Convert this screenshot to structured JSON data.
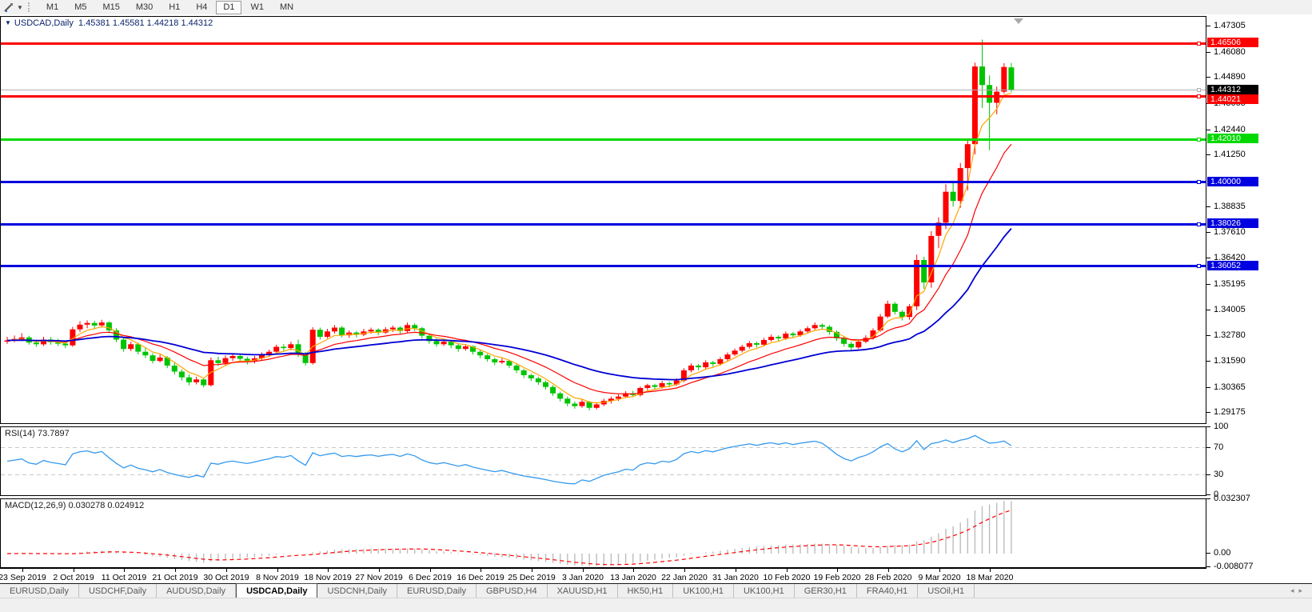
{
  "toolbar": {
    "tool_icon": "annotation-cursor-tool",
    "timeframes": [
      "M1",
      "M5",
      "M15",
      "M30",
      "H1",
      "H4",
      "D1",
      "W1",
      "MN"
    ],
    "active_timeframe": "D1"
  },
  "chart": {
    "symbol_title": "USDCAD,Daily",
    "ohlc_label": "1.45381 1.45581 1.44218 1.44312",
    "rsi_label": "RSI(14) 73.7897",
    "macd_label": "MACD(12,26,9) 0.030278 0.024912",
    "current_price": "1.44312",
    "price_ticks": [
      "1.47305",
      "1.46080",
      "1.44890",
      "1.43665",
      "1.42440",
      "1.41250",
      "1.38835",
      "1.37610",
      "1.36420",
      "1.35195",
      "1.34005",
      "1.32780",
      "1.31590",
      "1.30365",
      "1.29175"
    ],
    "rsi_ticks": [
      "100",
      "70",
      "30",
      "0"
    ],
    "macd_ticks": [
      "0.032307",
      "0.00",
      "-0.008077"
    ],
    "levels": [
      {
        "value": 1.46506,
        "label": "1.46506",
        "color": "#fe0000"
      },
      {
        "value": 1.44021,
        "label": "1.44021",
        "color": "#fe0000"
      },
      {
        "value": 1.4201,
        "label": "1.42010",
        "color": "#00d900"
      },
      {
        "value": 1.4,
        "label": "1.40000",
        "color": "#0000e0"
      },
      {
        "value": 1.38026,
        "label": "1.38026",
        "color": "#0000e0"
      },
      {
        "value": 1.36052,
        "label": "1.36052",
        "color": "#0000e0"
      }
    ],
    "date_labels": [
      "23 Sep 2019",
      "2 Oct 2019",
      "11 Oct 2019",
      "21 Oct 2019",
      "30 Oct 2019",
      "8 Nov 2019",
      "18 Nov 2019",
      "27 Nov 2019",
      "6 Dec 2019",
      "16 Dec 2019",
      "25 Dec 2019",
      "3 Jan 2020",
      "13 Jan 2020",
      "22 Jan 2020",
      "31 Jan 2020",
      "10 Feb 2020",
      "19 Feb 2020",
      "28 Feb 2020",
      "9 Mar 2020",
      "18 Mar 2020"
    ],
    "colors": {
      "bull_candle": "#fe0000",
      "bear_candle": "#00c400",
      "ma_fast": "#ffa500",
      "ma_mid": "#fe0000",
      "ma_slow": "#0000d4",
      "rsi_line": "#3399ee",
      "macd_bar": "#bdbdbd",
      "macd_signal": "#fe0000",
      "current_price_line": "#b0b0b0",
      "current_price_badge": "#000000",
      "level_dash": "#c8c8c8"
    }
  },
  "tabs": {
    "items": [
      "EURUSD,Daily",
      "USDCHF,Daily",
      "AUDUSD,Daily",
      "USDCAD,Daily",
      "USDCNH,Daily",
      "EURUSD,Daily",
      "GBPUSD,H4",
      "XAUUSD,H1",
      "HK50,H1",
      "UK100,H1",
      "UK100,H1",
      "GER30,H1",
      "FRA40,H1",
      "USOil,H1"
    ],
    "active_index": 3
  },
  "chart_data": {
    "type": "candlestick",
    "symbol": "USDCAD",
    "timeframe": "Daily",
    "ylim": [
      1.287,
      1.4775
    ],
    "rsi_ylim": [
      0,
      100
    ],
    "indicators": {
      "rsi_period": 14,
      "macd": [
        12,
        26,
        9
      ],
      "ma_periods": {
        "fast": 5,
        "mid": 13,
        "slow": 34
      }
    },
    "last_ohlc": {
      "open": 1.45381,
      "high": 1.45581,
      "low": 1.44218,
      "close": 1.44312
    },
    "candles": [
      [
        1.3252,
        1.3275,
        1.3242,
        1.3258
      ],
      [
        1.3258,
        1.3281,
        1.325,
        1.3265
      ],
      [
        1.3265,
        1.3292,
        1.3258,
        1.3272
      ],
      [
        1.3272,
        1.328,
        1.3238,
        1.3248
      ],
      [
        1.3248,
        1.3262,
        1.3228,
        1.324
      ],
      [
        1.324,
        1.3275,
        1.3232,
        1.3262
      ],
      [
        1.3262,
        1.3274,
        1.3238,
        1.325
      ],
      [
        1.325,
        1.3266,
        1.3232,
        1.3243
      ],
      [
        1.3243,
        1.3258,
        1.3222,
        1.3235
      ],
      [
        1.3235,
        1.3322,
        1.3228,
        1.331
      ],
      [
        1.331,
        1.3348,
        1.3298,
        1.3332
      ],
      [
        1.3332,
        1.3352,
        1.3315,
        1.334
      ],
      [
        1.334,
        1.335,
        1.331,
        1.3328
      ],
      [
        1.3328,
        1.3355,
        1.3318,
        1.3342
      ],
      [
        1.3342,
        1.3348,
        1.3292,
        1.3305
      ],
      [
        1.3305,
        1.3315,
        1.325,
        1.3262
      ],
      [
        1.3262,
        1.327,
        1.3205,
        1.3218
      ],
      [
        1.3218,
        1.3252,
        1.3208,
        1.324
      ],
      [
        1.324,
        1.3248,
        1.3192,
        1.3205
      ],
      [
        1.3205,
        1.3222,
        1.3175,
        1.3188
      ],
      [
        1.3188,
        1.3198,
        1.315,
        1.3162
      ],
      [
        1.3162,
        1.3192,
        1.3155,
        1.3178
      ],
      [
        1.3178,
        1.3185,
        1.3128,
        1.314
      ],
      [
        1.314,
        1.3152,
        1.3098,
        1.3112
      ],
      [
        1.3112,
        1.3122,
        1.307,
        1.3085
      ],
      [
        1.3085,
        1.3098,
        1.3048,
        1.3062
      ],
      [
        1.3062,
        1.3088,
        1.3052,
        1.3075
      ],
      [
        1.3075,
        1.3082,
        1.3038,
        1.3048
      ],
      [
        1.3048,
        1.3178,
        1.3042,
        1.3165
      ],
      [
        1.3165,
        1.3182,
        1.3138,
        1.3152
      ],
      [
        1.3152,
        1.3188,
        1.314,
        1.3175
      ],
      [
        1.3175,
        1.3198,
        1.3162,
        1.3185
      ],
      [
        1.3185,
        1.3195,
        1.3158,
        1.3172
      ],
      [
        1.3172,
        1.3182,
        1.3145,
        1.316
      ],
      [
        1.316,
        1.3185,
        1.315,
        1.3174
      ],
      [
        1.3174,
        1.3202,
        1.3165,
        1.3192
      ],
      [
        1.3192,
        1.3215,
        1.318,
        1.3205
      ],
      [
        1.3205,
        1.3238,
        1.3195,
        1.3228
      ],
      [
        1.3228,
        1.324,
        1.3205,
        1.3222
      ],
      [
        1.3222,
        1.3252,
        1.3212,
        1.324
      ],
      [
        1.324,
        1.3262,
        1.318,
        1.3195
      ],
      [
        1.3195,
        1.3205,
        1.314,
        1.3152
      ],
      [
        1.3152,
        1.332,
        1.3145,
        1.3308
      ],
      [
        1.3308,
        1.3318,
        1.3262,
        1.3275
      ],
      [
        1.3275,
        1.3312,
        1.3268,
        1.33
      ],
      [
        1.33,
        1.333,
        1.329,
        1.3318
      ],
      [
        1.3318,
        1.3325,
        1.3272,
        1.3282
      ],
      [
        1.3282,
        1.3305,
        1.327,
        1.3295
      ],
      [
        1.3295,
        1.3302,
        1.3272,
        1.3285
      ],
      [
        1.3285,
        1.3312,
        1.3278,
        1.33
      ],
      [
        1.33,
        1.3318,
        1.329,
        1.3308
      ],
      [
        1.3308,
        1.3315,
        1.3282,
        1.3295
      ],
      [
        1.3295,
        1.332,
        1.3288,
        1.331
      ],
      [
        1.331,
        1.3328,
        1.3298,
        1.3318
      ],
      [
        1.3318,
        1.3325,
        1.329,
        1.3302
      ],
      [
        1.3302,
        1.3342,
        1.3295,
        1.333
      ],
      [
        1.333,
        1.3338,
        1.3302,
        1.3315
      ],
      [
        1.3315,
        1.3322,
        1.3268,
        1.328
      ],
      [
        1.328,
        1.3288,
        1.3242,
        1.3255
      ],
      [
        1.3255,
        1.3268,
        1.3228,
        1.324
      ],
      [
        1.324,
        1.3262,
        1.3232,
        1.3252
      ],
      [
        1.3252,
        1.3258,
        1.3222,
        1.3235
      ],
      [
        1.3235,
        1.3242,
        1.3205,
        1.3218
      ],
      [
        1.3218,
        1.324,
        1.321,
        1.323
      ],
      [
        1.323,
        1.3235,
        1.3192,
        1.3205
      ],
      [
        1.3205,
        1.3212,
        1.3175,
        1.3188
      ],
      [
        1.3188,
        1.3195,
        1.3158,
        1.317
      ],
      [
        1.317,
        1.3178,
        1.3142,
        1.3155
      ],
      [
        1.3155,
        1.3175,
        1.3148,
        1.3162
      ],
      [
        1.3162,
        1.3168,
        1.3128,
        1.314
      ],
      [
        1.314,
        1.3148,
        1.3105,
        1.3118
      ],
      [
        1.3118,
        1.3125,
        1.3082,
        1.3095
      ],
      [
        1.3095,
        1.3102,
        1.3068,
        1.308
      ],
      [
        1.308,
        1.3088,
        1.305,
        1.3062
      ],
      [
        1.3062,
        1.307,
        1.3028,
        1.304
      ],
      [
        1.304,
        1.3048,
        1.2998,
        1.301
      ],
      [
        1.301,
        1.3018,
        1.2972,
        1.2985
      ],
      [
        1.2985,
        1.2995,
        1.295,
        1.2962
      ],
      [
        1.2962,
        1.2972,
        1.2938,
        1.295
      ],
      [
        1.295,
        1.2982,
        1.2942,
        1.297
      ],
      [
        1.297,
        1.2975,
        1.293,
        1.2942
      ],
      [
        1.2942,
        1.2968,
        1.2935,
        1.2958
      ],
      [
        1.2958,
        1.2985,
        1.295,
        1.2975
      ],
      [
        1.2975,
        1.2995,
        1.2962,
        1.2985
      ],
      [
        1.2985,
        1.3005,
        1.2975,
        1.2995
      ],
      [
        1.2995,
        1.302,
        1.2988,
        1.301
      ],
      [
        1.301,
        1.3022,
        1.2992,
        1.3002
      ],
      [
        1.3002,
        1.3042,
        1.2995,
        1.3035
      ],
      [
        1.3035,
        1.3055,
        1.3025,
        1.3048
      ],
      [
        1.3048,
        1.3055,
        1.3028,
        1.304
      ],
      [
        1.304,
        1.3068,
        1.3032,
        1.3058
      ],
      [
        1.3058,
        1.3065,
        1.3038,
        1.3052
      ],
      [
        1.3052,
        1.308,
        1.3045,
        1.307
      ],
      [
        1.307,
        1.3128,
        1.3062,
        1.3118
      ],
      [
        1.3118,
        1.315,
        1.3108,
        1.314
      ],
      [
        1.314,
        1.3148,
        1.3118,
        1.3132
      ],
      [
        1.3132,
        1.3165,
        1.3125,
        1.3155
      ],
      [
        1.3155,
        1.3162,
        1.3135,
        1.3148
      ],
      [
        1.3148,
        1.318,
        1.314,
        1.317
      ],
      [
        1.317,
        1.3202,
        1.3162,
        1.3192
      ],
      [
        1.3192,
        1.322,
        1.3185,
        1.321
      ],
      [
        1.321,
        1.3238,
        1.3202,
        1.3228
      ],
      [
        1.3228,
        1.3255,
        1.322,
        1.3245
      ],
      [
        1.3245,
        1.3252,
        1.3225,
        1.3238
      ],
      [
        1.3238,
        1.327,
        1.323,
        1.326
      ],
      [
        1.326,
        1.3285,
        1.3252,
        1.3275
      ],
      [
        1.3275,
        1.3282,
        1.3255,
        1.3268
      ],
      [
        1.3268,
        1.33,
        1.326,
        1.329
      ],
      [
        1.329,
        1.3298,
        1.327,
        1.3282
      ],
      [
        1.3282,
        1.331,
        1.3275,
        1.33
      ],
      [
        1.33,
        1.3325,
        1.3292,
        1.3315
      ],
      [
        1.3315,
        1.3342,
        1.3308,
        1.333
      ],
      [
        1.333,
        1.3338,
        1.331,
        1.3322
      ],
      [
        1.3322,
        1.333,
        1.3285,
        1.3298
      ],
      [
        1.3298,
        1.3305,
        1.3255,
        1.3268
      ],
      [
        1.3268,
        1.3278,
        1.323,
        1.3242
      ],
      [
        1.3242,
        1.3252,
        1.3212,
        1.3225
      ],
      [
        1.3225,
        1.3262,
        1.3218,
        1.3252
      ],
      [
        1.3252,
        1.3282,
        1.3245,
        1.327
      ],
      [
        1.327,
        1.3315,
        1.3262,
        1.3305
      ],
      [
        1.3305,
        1.3382,
        1.3298,
        1.337
      ],
      [
        1.337,
        1.3445,
        1.3362,
        1.343
      ],
      [
        1.343,
        1.3438,
        1.338,
        1.3392
      ],
      [
        1.3392,
        1.34,
        1.3352,
        1.3368
      ],
      [
        1.3368,
        1.3428,
        1.3355,
        1.3418
      ],
      [
        1.3418,
        1.366,
        1.34,
        1.3635
      ],
      [
        1.3635,
        1.365,
        1.35,
        1.353
      ],
      [
        1.353,
        1.377,
        1.3505,
        1.3748
      ],
      [
        1.3748,
        1.3835,
        1.369,
        1.381
      ],
      [
        1.381,
        1.399,
        1.378,
        1.3955
      ],
      [
        1.3955,
        1.4005,
        1.3885,
        1.3912
      ],
      [
        1.3912,
        1.409,
        1.388,
        1.4066
      ],
      [
        1.4066,
        1.42,
        1.396,
        1.4178
      ],
      [
        1.4178,
        1.456,
        1.413,
        1.4542
      ],
      [
        1.4542,
        1.4668,
        1.4348,
        1.4455
      ],
      [
        1.4455,
        1.45,
        1.415,
        1.4372
      ],
      [
        1.4372,
        1.4448,
        1.4318,
        1.4424
      ],
      [
        1.4424,
        1.4558,
        1.4415,
        1.454
      ],
      [
        1.45381,
        1.45581,
        1.44218,
        1.44312
      ]
    ]
  }
}
